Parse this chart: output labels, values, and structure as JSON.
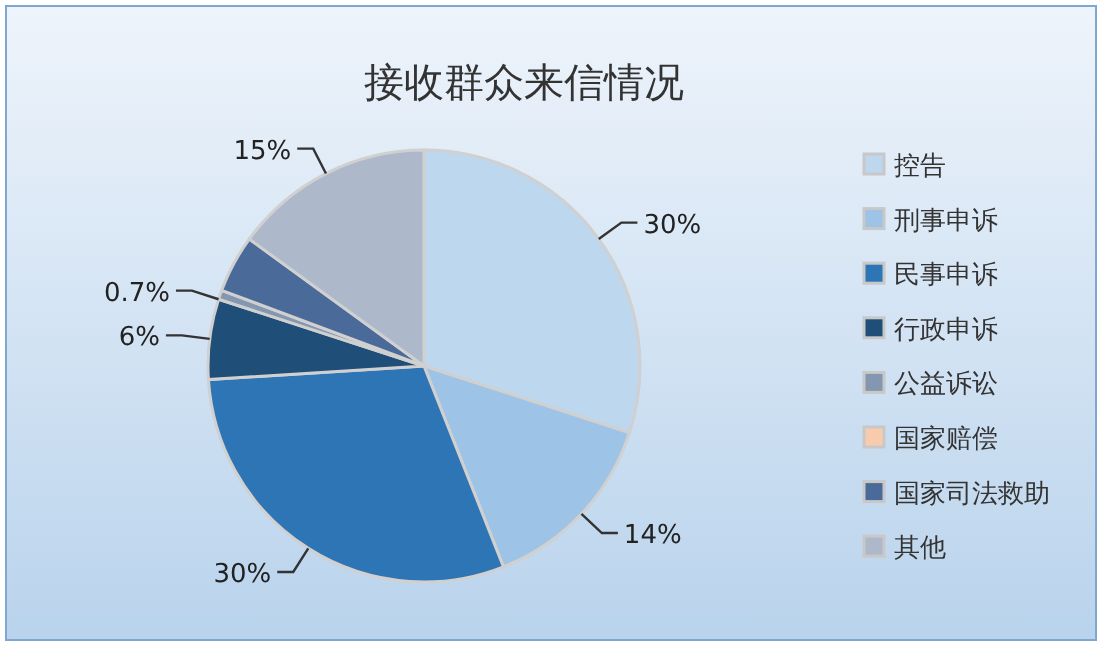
{
  "chart_data": {
    "type": "pie",
    "title": "接收群众来信情况",
    "categories": [
      "控告",
      "刑事申诉",
      "民事申诉",
      "行政申诉",
      "公益诉讼",
      "国家赔偿",
      "国家司法救助",
      "其他"
    ],
    "values": [
      30,
      14,
      30,
      6,
      0.7,
      0,
      4.3,
      15
    ],
    "value_labels": [
      "30%",
      "14%",
      "30%",
      "6%",
      "0.7%",
      null,
      null,
      "15%"
    ],
    "colors": [
      "#bdd7ee",
      "#9dc3e6",
      "#2e75b6",
      "#1f4e79",
      "#8497b0",
      "#f8cbad",
      "#4a6a99",
      "#adb9ca"
    ],
    "legend": "right"
  }
}
